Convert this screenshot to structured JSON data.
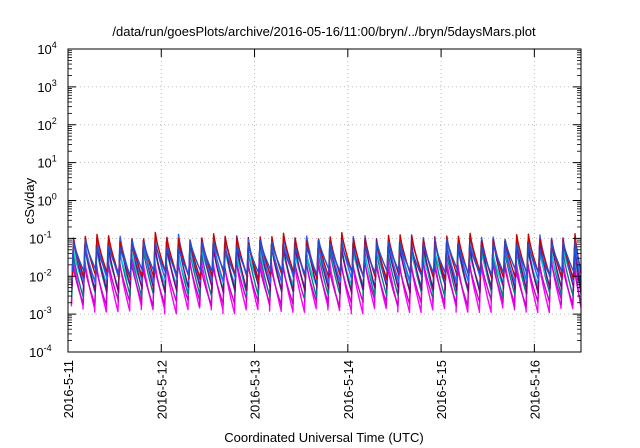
{
  "chart_data": {
    "type": "line",
    "title": "/data/run/goesPlots/archive/2016-05-16/11:00/bryn/../bryn/5daysMars.plot",
    "xlabel": "Coordinated Universal Time (UTC)",
    "ylabel": "cSv/day",
    "yscale": "log",
    "grid": true,
    "legend": "none",
    "xlim": [
      "2016-05-11",
      "2016-05-16T12:00"
    ],
    "ylim": [
      0.0001,
      10000
    ],
    "x_ticks": [
      "2016-5-11",
      "2016-5-12",
      "2016-5-13",
      "2016-5-14",
      "2016-5-15",
      "2016-5-16"
    ],
    "y_ticks": [
      {
        "value": 0.0001,
        "base": "10",
        "exp": "-4"
      },
      {
        "value": 0.001,
        "base": "10",
        "exp": "-3"
      },
      {
        "value": 0.01,
        "base": "10",
        "exp": "-2"
      },
      {
        "value": 0.1,
        "base": "10",
        "exp": "-1"
      },
      {
        "value": 1,
        "base": "10",
        "exp": "0"
      },
      {
        "value": 10,
        "base": "10",
        "exp": "1"
      },
      {
        "value": 100,
        "base": "10",
        "exp": "2"
      },
      {
        "value": 1000,
        "base": "10",
        "exp": "3"
      },
      {
        "value": 10000,
        "base": "10",
        "exp": "4"
      }
    ],
    "oscillation": {
      "cycles_per_day": 8,
      "start": "2016-05-11T01:00"
    },
    "series": [
      {
        "color": "#ff00ff",
        "peak": 0.03,
        "trough": 0.0013
      },
      {
        "color": "#cc00cc",
        "peak": 0.022,
        "trough": 0.002
      },
      {
        "color": "#008080",
        "peak": 0.06,
        "trough": 0.0035
      },
      {
        "color": "#00cccc",
        "peak": 0.05,
        "trough": 0.006
      },
      {
        "color": "#800080",
        "peak": 0.08,
        "trough": 0.0045
      },
      {
        "color": "#3060ff",
        "peak": 0.095,
        "trough": 0.008
      },
      {
        "color": "#cc0000",
        "peak": 0.105,
        "trough": 0.01
      },
      {
        "color": "#2050d0",
        "peak": 0.07,
        "trough": 0.012
      }
    ]
  }
}
